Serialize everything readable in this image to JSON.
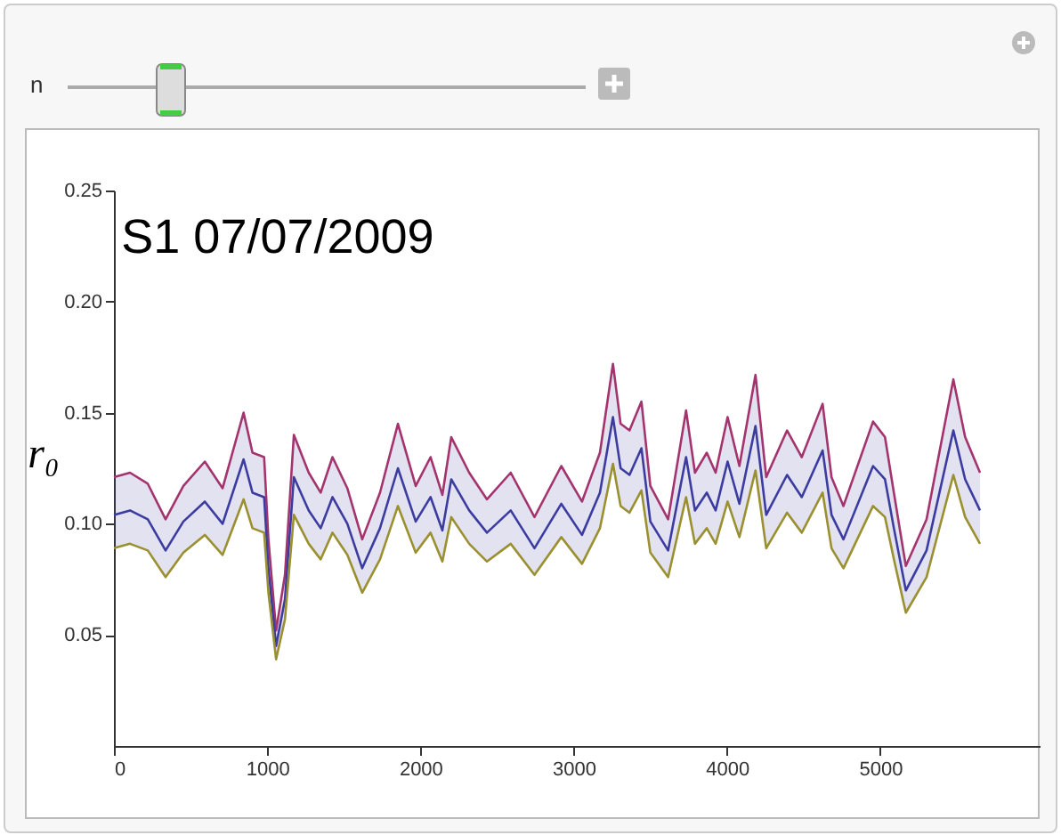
{
  "chart_data": {
    "type": "line",
    "title": "S1 07/07/2009",
    "ylabel": "r₀",
    "annotations": [
      "n"
    ],
    "x": [
      0,
      105,
      221,
      337,
      453,
      593,
      709,
      846,
      904,
      980,
      1008,
      1058,
      1116,
      1174,
      1271,
      1349,
      1426,
      1523,
      1620,
      1736,
      1853,
      1969,
      2066,
      2143,
      2201,
      2318,
      2434,
      2589,
      2744,
      2919,
      3054,
      3171,
      3256,
      3306,
      3364,
      3442,
      3500,
      3616,
      3733,
      3791,
      3868,
      3926,
      4004,
      4081,
      4186,
      4256,
      4392,
      4488,
      4624,
      4682,
      4760,
      4953,
      5031,
      5089,
      5167,
      5302,
      5477,
      5554,
      5651
    ],
    "series": [
      {
        "color": "#a3346e",
        "values": [
          0.121,
          0.123,
          0.118,
          0.102,
          0.117,
          0.128,
          0.116,
          0.15,
          0.132,
          0.13,
          0.093,
          0.052,
          0.077,
          0.14,
          0.123,
          0.114,
          0.13,
          0.116,
          0.093,
          0.114,
          0.145,
          0.117,
          0.13,
          0.113,
          0.139,
          0.123,
          0.111,
          0.123,
          0.103,
          0.126,
          0.11,
          0.132,
          0.172,
          0.145,
          0.142,
          0.155,
          0.117,
          0.102,
          0.151,
          0.123,
          0.132,
          0.123,
          0.148,
          0.126,
          0.167,
          0.121,
          0.142,
          0.13,
          0.154,
          0.121,
          0.108,
          0.146,
          0.139,
          0.114,
          0.081,
          0.102,
          0.165,
          0.139,
          0.123
        ]
      },
      {
        "color": "#3c3ca0",
        "values": [
          0.104,
          0.106,
          0.102,
          0.088,
          0.101,
          0.11,
          0.1,
          0.129,
          0.114,
          0.112,
          0.08,
          0.045,
          0.066,
          0.121,
          0.106,
          0.098,
          0.112,
          0.1,
          0.08,
          0.098,
          0.125,
          0.101,
          0.112,
          0.097,
          0.12,
          0.106,
          0.096,
          0.106,
          0.089,
          0.109,
          0.095,
          0.114,
          0.148,
          0.125,
          0.122,
          0.134,
          0.101,
          0.088,
          0.13,
          0.106,
          0.114,
          0.106,
          0.128,
          0.109,
          0.144,
          0.104,
          0.122,
          0.112,
          0.133,
          0.104,
          0.093,
          0.126,
          0.12,
          0.098,
          0.07,
          0.088,
          0.142,
          0.12,
          0.106
        ],
        "upper": [
          0.121,
          0.123,
          0.118,
          0.102,
          0.117,
          0.128,
          0.116,
          0.15,
          0.132,
          0.13,
          0.093,
          0.052,
          0.077,
          0.14,
          0.123,
          0.114,
          0.13,
          0.116,
          0.093,
          0.114,
          0.145,
          0.117,
          0.13,
          0.113,
          0.139,
          0.123,
          0.111,
          0.123,
          0.103,
          0.126,
          0.11,
          0.132,
          0.172,
          0.145,
          0.142,
          0.155,
          0.117,
          0.102,
          0.151,
          0.123,
          0.132,
          0.123,
          0.148,
          0.126,
          0.167,
          0.121,
          0.142,
          0.13,
          0.154,
          0.121,
          0.108,
          0.146,
          0.139,
          0.114,
          0.081,
          0.102,
          0.165,
          0.139,
          0.123
        ],
        "lower": [
          0.089,
          0.091,
          0.088,
          0.076,
          0.087,
          0.095,
          0.086,
          0.111,
          0.098,
          0.096,
          0.069,
          0.039,
          0.057,
          0.104,
          0.091,
          0.084,
          0.096,
          0.086,
          0.069,
          0.084,
          0.108,
          0.087,
          0.096,
          0.083,
          0.103,
          0.091,
          0.083,
          0.091,
          0.077,
          0.094,
          0.082,
          0.098,
          0.127,
          0.108,
          0.105,
          0.115,
          0.087,
          0.076,
          0.112,
          0.091,
          0.098,
          0.091,
          0.11,
          0.094,
          0.124,
          0.089,
          0.105,
          0.096,
          0.114,
          0.089,
          0.08,
          0.108,
          0.103,
          0.084,
          0.06,
          0.076,
          0.122,
          0.103,
          0.091
        ]
      },
      {
        "color": "#9a9030",
        "values": [
          0.089,
          0.091,
          0.088,
          0.076,
          0.087,
          0.095,
          0.086,
          0.111,
          0.098,
          0.096,
          0.069,
          0.039,
          0.057,
          0.104,
          0.091,
          0.084,
          0.096,
          0.086,
          0.069,
          0.084,
          0.108,
          0.087,
          0.096,
          0.083,
          0.103,
          0.091,
          0.083,
          0.091,
          0.077,
          0.094,
          0.082,
          0.098,
          0.127,
          0.108,
          0.105,
          0.115,
          0.087,
          0.076,
          0.112,
          0.091,
          0.098,
          0.091,
          0.11,
          0.094,
          0.124,
          0.089,
          0.105,
          0.096,
          0.114,
          0.089,
          0.08,
          0.108,
          0.103,
          0.084,
          0.06,
          0.076,
          0.122,
          0.103,
          0.091
        ]
      }
    ],
    "xlim": [
      0,
      6040
    ],
    "xticks": [
      0,
      1000,
      2000,
      3000,
      4000,
      5000
    ],
    "ylim": [
      0,
      0.25
    ],
    "yticks": [
      0.05,
      {
        "value": 0.1,
        "label": "0.10"
      },
      0.15,
      {
        "value": 0.2,
        "label": "0.20"
      },
      0.25
    ],
    "grid": false
  }
}
